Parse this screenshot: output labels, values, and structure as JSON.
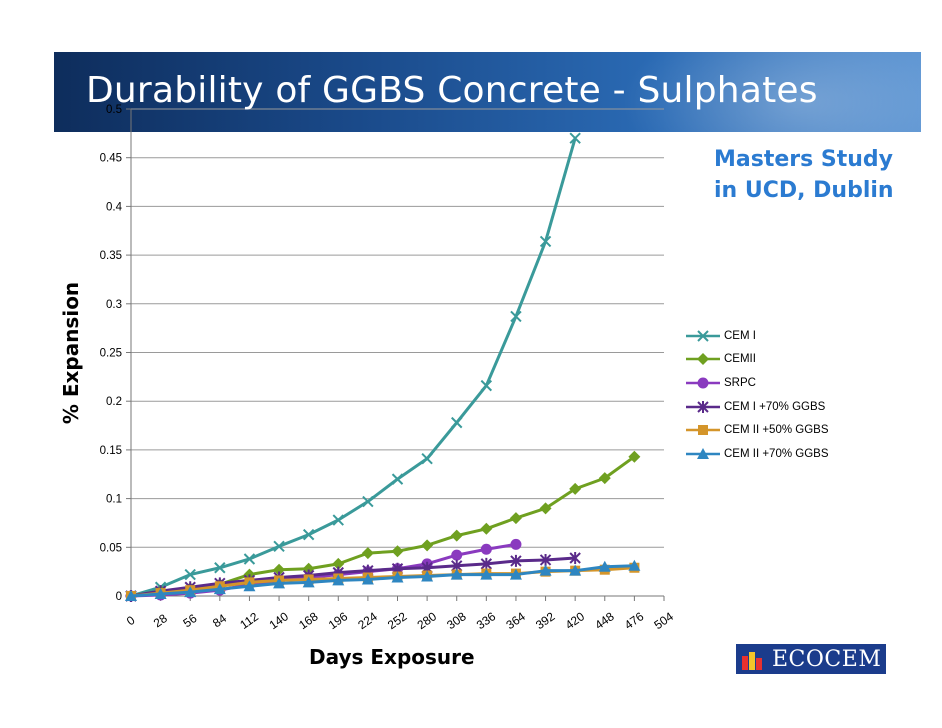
{
  "slide": {
    "title": "Durability of GGBS Concrete - Sulphates",
    "note": "Masters Study in UCD, Dublin",
    "logo_text": "ECOCEM"
  },
  "chart_data": {
    "type": "line",
    "xlabel": "Days Exposure",
    "ylabel": "% Expansion",
    "x_ticks": [
      0,
      28,
      56,
      84,
      112,
      140,
      168,
      196,
      224,
      252,
      280,
      308,
      336,
      364,
      392,
      420,
      448,
      476,
      504
    ],
    "y_ticks": [
      0,
      0.05,
      0.1,
      0.15,
      0.2,
      0.25,
      0.3,
      0.35,
      0.4,
      0.45,
      0.5
    ],
    "y_tick_labels": [
      "0",
      "0.05",
      "0.1",
      "0.15",
      "0.2",
      "0.25",
      "0.3",
      "0.35",
      "0.4",
      "0.45",
      "0.5"
    ],
    "xlim": [
      0,
      504
    ],
    "ylim": [
      0,
      0.5
    ],
    "grid": "horizontal",
    "legend": "right",
    "series": [
      {
        "name": "CEM I",
        "color": "#3a9a9a",
        "marker": "x",
        "x": [
          0,
          28,
          56,
          84,
          112,
          140,
          168,
          196,
          224,
          252,
          280,
          308,
          336,
          364,
          392,
          420
        ],
        "values": [
          0,
          0.009,
          0.022,
          0.029,
          0.038,
          0.051,
          0.063,
          0.078,
          0.097,
          0.12,
          0.141,
          0.178,
          0.216,
          0.287,
          0.364,
          0.47
        ]
      },
      {
        "name": "CEMII",
        "color": "#6fa020",
        "marker": "diamond",
        "x": [
          0,
          28,
          56,
          84,
          112,
          140,
          168,
          196,
          224,
          252,
          280,
          308,
          336,
          364,
          392,
          420,
          448,
          476
        ],
        "values": [
          0,
          0.005,
          0.008,
          0.012,
          0.022,
          0.027,
          0.028,
          0.033,
          0.044,
          0.046,
          0.052,
          0.062,
          0.069,
          0.08,
          0.09,
          0.11,
          0.121,
          0.143
        ]
      },
      {
        "name": "SRPC",
        "color": "#8a3abf",
        "marker": "circle",
        "x": [
          0,
          28,
          56,
          84,
          112,
          140,
          168,
          196,
          224,
          252,
          280,
          308,
          336,
          364
        ],
        "values": [
          0,
          0.001,
          0.003,
          0.006,
          0.012,
          0.016,
          0.019,
          0.022,
          0.025,
          0.028,
          0.033,
          0.042,
          0.048,
          0.053
        ]
      },
      {
        "name": "CEM I +70% GGBS",
        "color": "#5a2a8a",
        "marker": "star",
        "x": [
          0,
          28,
          56,
          84,
          112,
          140,
          168,
          196,
          224,
          252,
          280,
          308,
          336,
          364,
          392,
          420
        ],
        "values": [
          0,
          0.005,
          0.009,
          0.013,
          0.016,
          0.019,
          0.021,
          0.024,
          0.026,
          0.028,
          0.029,
          0.031,
          0.033,
          0.036,
          0.037,
          0.039
        ]
      },
      {
        "name": "CEM II +50% GGBS",
        "color": "#d4952a",
        "marker": "square",
        "x": [
          0,
          28,
          56,
          84,
          112,
          140,
          168,
          196,
          224,
          252,
          280,
          308,
          336,
          364,
          392,
          420,
          448,
          476
        ],
        "values": [
          0,
          0.003,
          0.006,
          0.01,
          0.014,
          0.016,
          0.017,
          0.018,
          0.019,
          0.02,
          0.021,
          0.022,
          0.023,
          0.023,
          0.025,
          0.026,
          0.027,
          0.029
        ]
      },
      {
        "name": "CEM II +70% GGBS",
        "color": "#2e86c1",
        "marker": "triangle",
        "x": [
          0,
          28,
          56,
          84,
          112,
          140,
          168,
          196,
          224,
          252,
          280,
          308,
          336,
          364,
          392,
          420,
          448,
          476
        ],
        "values": [
          0,
          0.002,
          0.004,
          0.007,
          0.01,
          0.013,
          0.014,
          0.016,
          0.017,
          0.019,
          0.02,
          0.022,
          0.022,
          0.022,
          0.026,
          0.026,
          0.03,
          0.031
        ]
      }
    ]
  }
}
